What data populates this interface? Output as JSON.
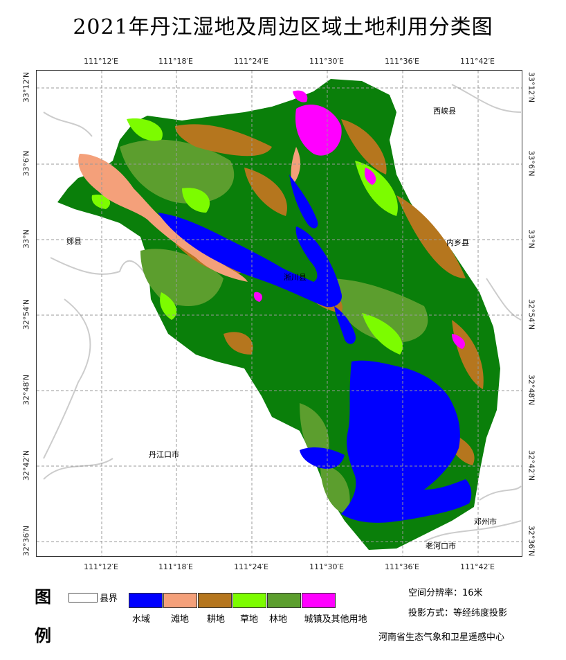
{
  "title": "2021年丹江湿地及周边区域土地利用分类图",
  "lon_labels": [
    "111°12′E",
    "111°18′E",
    "111°24′E",
    "111°30′E",
    "111°36′E",
    "111°42′E"
  ],
  "lat_labels": [
    "33°12′N",
    "33°6′N",
    "33°N",
    "32°54′N",
    "32°48′N",
    "32°42′N",
    "32°36′N"
  ],
  "places": {
    "xixia": "西峡县",
    "xixian": "郧县",
    "neixiang": "内乡县",
    "xichuan": "淅川县",
    "danjiangkou": "丹江口市",
    "dengzhou": "邓州市",
    "laohekou": "老河口市"
  },
  "legend": {
    "title_chars": [
      "图",
      "例"
    ],
    "county_label": "县界",
    "classes": [
      {
        "name": "水域",
        "color": "#0000ff"
      },
      {
        "name": "滩地",
        "color": "#f4a07a"
      },
      {
        "name": "耕地",
        "color": "#b5761e"
      },
      {
        "name": "草地",
        "color": "#7cfc00"
      },
      {
        "name": "林地",
        "color": "#5c9e2e"
      },
      {
        "name": "城镇及其他用地",
        "color": "#ff00ff"
      }
    ]
  },
  "info": {
    "resolution": "空间分辨率：16米",
    "projection": "投影方式：等经纬度投影",
    "agency": "河南省生态气象和卫星遥感中心"
  },
  "colors": {
    "forest_dark": "#0a7f0a",
    "grid": "#999999",
    "county_line": "#cccccc"
  }
}
